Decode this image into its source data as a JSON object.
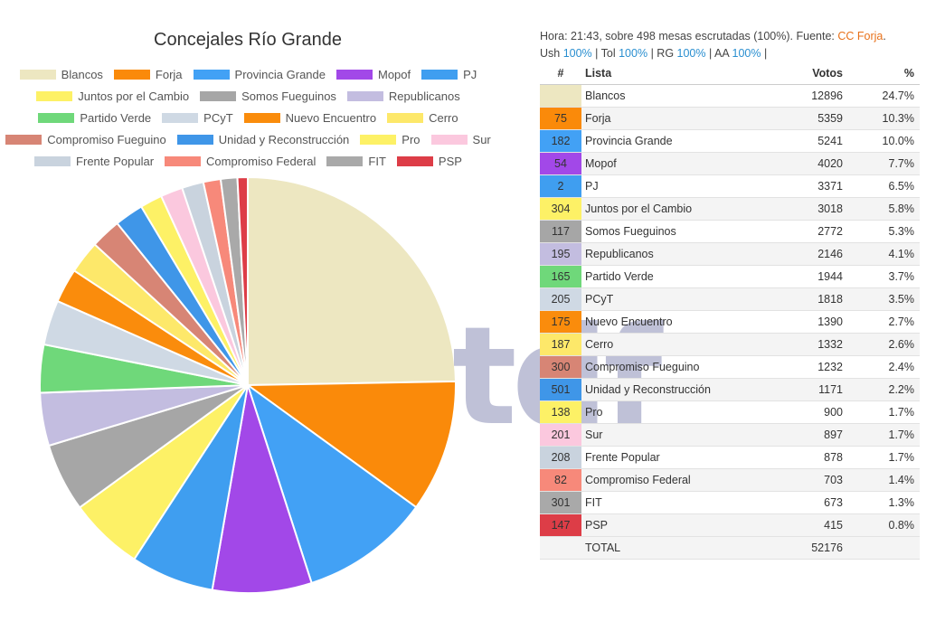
{
  "chart_data": {
    "type": "pie",
    "title": "Concejales Río Grande",
    "categories": [
      "Blancos",
      "Forja",
      "Provincia Grande",
      "Mopof",
      "PJ",
      "Juntos por el Cambio",
      "Somos Fueguinos",
      "Republicanos",
      "Partido Verde",
      "PCyT",
      "Nuevo Encuentro",
      "Cerro",
      "Compromiso Fueguino",
      "Unidad y Reconstrucción",
      "Pro",
      "Sur",
      "Frente Popular",
      "Compromiso Federal",
      "FIT",
      "PSP"
    ],
    "values": [
      12896,
      5359,
      5241,
      4020,
      3371,
      3018,
      2772,
      2146,
      1944,
      1818,
      1390,
      1332,
      1232,
      1171,
      900,
      897,
      878,
      703,
      673,
      415
    ],
    "colors": [
      "#ede7c1",
      "#fa8a0a",
      "#42a1f5",
      "#a248e8",
      "#3f9ef0",
      "#fdf166",
      "#a6a6a6",
      "#c3bde0",
      "#6fd87a",
      "#cfd9e4",
      "#fa8c0c",
      "#fde86a",
      "#d78575",
      "#3f96e8",
      "#fdf166",
      "#fbc8de",
      "#c9d3de",
      "#f7897a",
      "#a9a9a9",
      "#dd3d47"
    ],
    "legend_position": "top"
  },
  "info": {
    "line1_prefix": "Hora: 21:43, sobre 498 mesas escrutadas (100%). Fuente:",
    "source": "CC Forja",
    "line1_suffix": ".",
    "segments": [
      {
        "label": "Ush",
        "pct": "100%",
        "sep": "|"
      },
      {
        "label": "Tol",
        "pct": "100%",
        "sep": "|"
      },
      {
        "label": "RG",
        "pct": "100%",
        "sep": "|"
      },
      {
        "label": "AA",
        "pct": "100%",
        "sep": "|"
      }
    ]
  },
  "table": {
    "headers": {
      "num": "#",
      "name": "Lista",
      "votes": "Votos",
      "pct": "%"
    },
    "rows": [
      {
        "num": "",
        "name": "Blancos",
        "votes": "12896",
        "pct": "24.7%",
        "color": "#ede7c1"
      },
      {
        "num": "75",
        "name": "Forja",
        "votes": "5359",
        "pct": "10.3%",
        "color": "#fa8a0a"
      },
      {
        "num": "182",
        "name": "Provincia Grande",
        "votes": "5241",
        "pct": "10.0%",
        "color": "#42a1f5"
      },
      {
        "num": "54",
        "name": "Mopof",
        "votes": "4020",
        "pct": "7.7%",
        "color": "#a248e8"
      },
      {
        "num": "2",
        "name": "PJ",
        "votes": "3371",
        "pct": "6.5%",
        "color": "#3f9ef0"
      },
      {
        "num": "304",
        "name": "Juntos por el Cambio",
        "votes": "3018",
        "pct": "5.8%",
        "color": "#fdf166"
      },
      {
        "num": "117",
        "name": "Somos Fueguinos",
        "votes": "2772",
        "pct": "5.3%",
        "color": "#a6a6a6"
      },
      {
        "num": "195",
        "name": "Republicanos",
        "votes": "2146",
        "pct": "4.1%",
        "color": "#c3bde0"
      },
      {
        "num": "165",
        "name": "Partido Verde",
        "votes": "1944",
        "pct": "3.7%",
        "color": "#6fd87a"
      },
      {
        "num": "205",
        "name": "PCyT",
        "votes": "1818",
        "pct": "3.5%",
        "color": "#cfd9e4"
      },
      {
        "num": "175",
        "name": "Nuevo Encuentro",
        "votes": "1390",
        "pct": "2.7%",
        "color": "#fa8c0c"
      },
      {
        "num": "187",
        "name": "Cerro",
        "votes": "1332",
        "pct": "2.6%",
        "color": "#fde86a"
      },
      {
        "num": "300",
        "name": "Compromiso Fueguino",
        "votes": "1232",
        "pct": "2.4%",
        "color": "#d78575"
      },
      {
        "num": "501",
        "name": "Unidad y Reconstrucción",
        "votes": "1171",
        "pct": "2.2%",
        "color": "#3f96e8"
      },
      {
        "num": "138",
        "name": "Pro",
        "votes": "900",
        "pct": "1.7%",
        "color": "#fdf166"
      },
      {
        "num": "201",
        "name": "Sur",
        "votes": "897",
        "pct": "1.7%",
        "color": "#fbc8de"
      },
      {
        "num": "208",
        "name": "Frente Popular",
        "votes": "878",
        "pct": "1.7%",
        "color": "#c9d3de"
      },
      {
        "num": "82",
        "name": "Compromiso Federal",
        "votes": "703",
        "pct": "1.4%",
        "color": "#f7897a"
      },
      {
        "num": "301",
        "name": "FIT",
        "votes": "673",
        "pct": "1.3%",
        "color": "#a9a9a9"
      },
      {
        "num": "147",
        "name": "PSP",
        "votes": "415",
        "pct": "0.8%",
        "color": "#dd3d47"
      }
    ],
    "total": {
      "label": "TOTAL",
      "votes": "52176"
    }
  },
  "watermark": "tdf"
}
